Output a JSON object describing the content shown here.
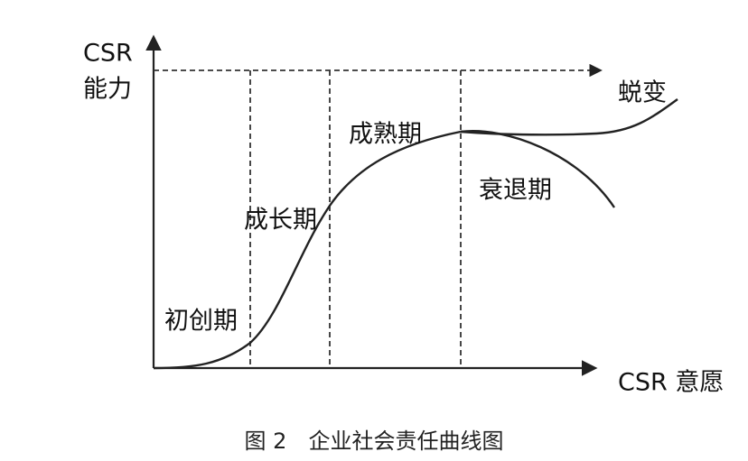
{
  "diagram": {
    "y_axis_label": [
      "CSR",
      "能力"
    ],
    "x_axis_label": "CSR 意愿",
    "stages": [
      "初创期",
      "成长期",
      "成熟期",
      "衰退期",
      "蜕变"
    ],
    "caption": "图 2　企业社会责任曲线图"
  }
}
